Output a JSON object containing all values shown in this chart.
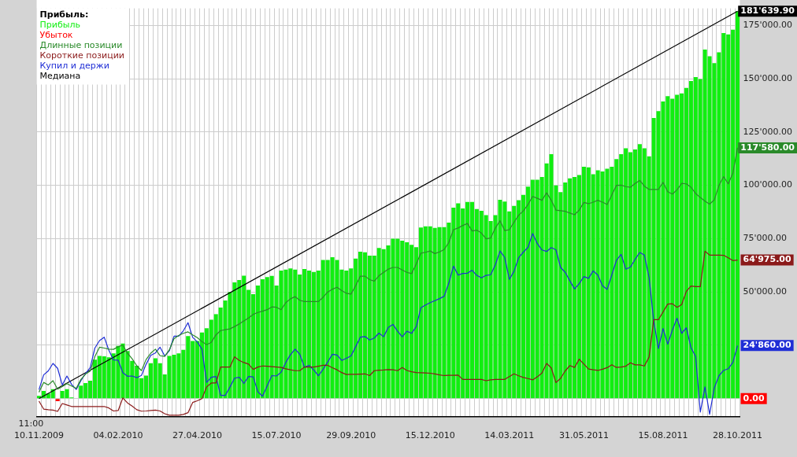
{
  "chart_data": {
    "type": "bar",
    "categories": [
      "10.11.2009",
      null,
      null,
      null,
      null,
      null,
      null,
      null,
      null,
      null,
      null,
      null,
      null,
      null,
      null,
      null,
      null,
      "04.02.2010",
      null,
      null,
      null,
      null,
      null,
      null,
      null,
      null,
      null,
      null,
      null,
      null,
      null,
      null,
      null,
      null,
      "27.04.2010",
      null,
      null,
      null,
      null,
      null,
      null,
      null,
      null,
      null,
      null,
      null,
      null,
      null,
      null,
      null,
      null,
      "15.07.2010",
      null,
      null,
      null,
      null,
      null,
      null,
      null,
      null,
      null,
      null,
      null,
      null,
      null,
      null,
      null,
      "29.09.2010",
      null,
      null,
      null,
      null,
      null,
      null,
      null,
      null,
      null,
      null,
      null,
      null,
      null,
      null,
      null,
      null,
      "15.12.2010",
      null,
      null,
      null,
      null,
      null,
      null,
      null,
      null,
      null,
      null,
      null,
      null,
      null,
      null,
      null,
      null,
      "14.03.2011",
      null,
      null,
      null,
      null,
      null,
      null,
      null,
      null,
      null,
      null,
      null,
      null,
      null,
      null,
      null,
      "31.05.2011",
      null,
      null,
      null,
      null,
      null,
      null,
      null,
      null,
      null,
      null,
      null,
      null,
      null,
      null,
      null,
      null,
      "15.08.2011",
      null,
      null,
      null,
      null,
      null,
      null,
      null,
      null,
      null,
      null,
      null,
      null,
      null,
      null,
      null,
      "28.10.2011"
    ],
    "series": [
      {
        "name": "Прибыль",
        "color": "#11ee11",
        "values": [
          1300,
          3600,
          2400,
          4400,
          null,
          3600,
          4400,
          600,
          null,
          6100,
          7300,
          8400,
          18300,
          20000,
          19800,
          19400,
          21200,
          24700,
          25800,
          22300,
          17700,
          15400,
          9600,
          10800,
          16600,
          18900,
          16600,
          11300,
          20000,
          20600,
          21200,
          22900,
          29300,
          27000,
          27000,
          31000,
          33000,
          37000,
          39600,
          42700,
          46000,
          50000,
          54500,
          55600,
          57600,
          51000,
          49000,
          53000,
          56000,
          57000,
          57500,
          53000,
          60000,
          60500,
          61000,
          60500,
          58200,
          60800,
          60000,
          59400,
          60000,
          65000,
          65000,
          66300,
          65000,
          60500,
          60000,
          61000,
          65700,
          68900,
          68600,
          67000,
          67000,
          70600,
          70100,
          71800,
          75000,
          75000,
          74000,
          73300,
          72100,
          71000,
          80200,
          80800,
          80800,
          80000,
          80400,
          80400,
          82500,
          89500,
          91600,
          89200,
          92200,
          92200,
          88900,
          88100,
          86000,
          83300,
          86000,
          93200,
          92400,
          87800,
          90400,
          93000,
          95500,
          99400,
          102600,
          102600,
          103900,
          110300,
          114600,
          100000,
          96800,
          101300,
          103300,
          103900,
          104800,
          108700,
          108400,
          105200,
          107100,
          106500,
          107800,
          108700,
          112300,
          114600,
          117400,
          115500,
          116800,
          119300,
          117400,
          113600,
          131600,
          134800,
          139300,
          141800,
          140600,
          142500,
          143100,
          145700,
          148900,
          150800,
          149800,
          163700,
          160500,
          157300,
          162400,
          171400,
          170800,
          173000,
          181639.9
        ]
      },
      {
        "name": "Убыток",
        "color": "#ff0000",
        "values": [
          null,
          null,
          null,
          null,
          -1200,
          null,
          null,
          null,
          null,
          null,
          null,
          null,
          null,
          null,
          null,
          null,
          null,
          null,
          null,
          null,
          null,
          null,
          null,
          null,
          null,
          null,
          null,
          null,
          null,
          null,
          null,
          null,
          null,
          null,
          null,
          null,
          null,
          null,
          null,
          null,
          null,
          null,
          null,
          null,
          null,
          null,
          null,
          null,
          null,
          null,
          null,
          null,
          null,
          null,
          null,
          null,
          null,
          null,
          null,
          null,
          null,
          null,
          null,
          null,
          null,
          null,
          null,
          null,
          null,
          null,
          null,
          null,
          null,
          null,
          null,
          null,
          null,
          null,
          null,
          null,
          null,
          null,
          null,
          null,
          null,
          null,
          null,
          null,
          null,
          null,
          null,
          null,
          null,
          null,
          null,
          null,
          null,
          null,
          null,
          null,
          null,
          null,
          null,
          null,
          null,
          null,
          null,
          null,
          null,
          null,
          null,
          null,
          null,
          null,
          null,
          null,
          null,
          null,
          null,
          null,
          null,
          null,
          null,
          null,
          null,
          null,
          null,
          null,
          null,
          null,
          null,
          null,
          null,
          null,
          null,
          null,
          null,
          null,
          null,
          null,
          null,
          null,
          null,
          null,
          null,
          null,
          null,
          null,
          null,
          null,
          0
        ]
      },
      {
        "name": "Длинные позиции",
        "type": "line",
        "color": "#2a8a2a",
        "values": [
          3000,
          7600,
          6400,
          8400,
          4400,
          5600,
          7000,
          5900,
          4800,
          9000,
          11500,
          12900,
          19700,
          24100,
          23700,
          23200,
          23100,
          24300,
          25100,
          21300,
          18700,
          15400,
          13100,
          18300,
          21300,
          23200,
          20100,
          19800,
          22900,
          28100,
          29600,
          30600,
          31300,
          29900,
          28600,
          26700,
          25300,
          26400,
          29900,
          31900,
          32300,
          32700,
          33800,
          35000,
          36400,
          37800,
          39500,
          40400,
          41000,
          41700,
          43000,
          42800,
          41700,
          45000,
          46800,
          47800,
          46100,
          45500,
          45500,
          45500,
          45500,
          47500,
          50000,
          51300,
          52200,
          50600,
          49400,
          49000,
          52900,
          57400,
          57400,
          55800,
          55100,
          57600,
          59200,
          60700,
          61500,
          61500,
          60300,
          59200,
          58600,
          63100,
          68200,
          68600,
          69200,
          68000,
          68800,
          69900,
          73200,
          79200,
          80000,
          81200,
          82100,
          78600,
          79000,
          77600,
          74900,
          75300,
          80000,
          83400,
          78800,
          79200,
          82700,
          86000,
          88000,
          91000,
          94800,
          93900,
          93000,
          96500,
          93000,
          88400,
          88100,
          87800,
          87000,
          86200,
          88400,
          92000,
          91400,
          92100,
          93000,
          92100,
          91000,
          95500,
          100000,
          100100,
          99400,
          99100,
          100900,
          102300,
          99600,
          98100,
          98100,
          98100,
          101400,
          97000,
          95900,
          97900,
          100900,
          100700,
          99100,
          96200,
          94300,
          92600,
          91200,
          93200,
          99900,
          104100,
          100700,
          105800,
          117580
        ]
      },
      {
        "name": "Короткие позиции",
        "type": "line",
        "color": "#8b1a1a",
        "values": [
          -1200,
          -4900,
          -5200,
          -5400,
          -6000,
          -2300,
          -3000,
          -3700,
          -3700,
          -3700,
          -3700,
          -3700,
          -3700,
          -3700,
          -3700,
          -4400,
          -5800,
          -5600,
          300,
          -2000,
          -3500,
          -5200,
          -5900,
          -5800,
          -5600,
          -5400,
          -5800,
          -7100,
          -7800,
          -7800,
          -7800,
          -7400,
          -6600,
          -1800,
          -1000,
          0,
          5500,
          7300,
          7300,
          14800,
          14800,
          14800,
          19600,
          17900,
          16900,
          16200,
          13700,
          14800,
          15300,
          15200,
          15000,
          14800,
          14600,
          14000,
          13500,
          13100,
          13100,
          14800,
          14800,
          14800,
          15200,
          15600,
          15600,
          14500,
          13500,
          12200,
          11300,
          11400,
          11400,
          11500,
          11600,
          10800,
          13100,
          13300,
          13400,
          13600,
          13500,
          13100,
          14600,
          13200,
          12600,
          12200,
          12100,
          12000,
          11900,
          11600,
          11100,
          10800,
          10900,
          10900,
          11000,
          9000,
          9000,
          9000,
          9000,
          9000,
          8400,
          8800,
          9000,
          9000,
          9000,
          10300,
          11600,
          10700,
          9900,
          9400,
          8800,
          10200,
          12000,
          16500,
          14400,
          7500,
          9500,
          13000,
          15500,
          14600,
          18500,
          16200,
          13900,
          13500,
          13200,
          13800,
          14500,
          15900,
          14600,
          14800,
          15200,
          16800,
          15800,
          15800,
          15300,
          19500,
          37000,
          37000,
          40600,
          44300,
          44500,
          42800,
          44100,
          50300,
          52800,
          52500,
          52500,
          69100,
          67300,
          67300,
          67300,
          67200,
          66000,
          64700,
          64975
        ]
      },
      {
        "name": "Купил и держи",
        "type": "line",
        "color": "#1f2ed6",
        "values": [
          4200,
          11100,
          13000,
          16500,
          14200,
          6400,
          10600,
          6700,
          4300,
          8400,
          11800,
          14500,
          23700,
          27200,
          28800,
          22700,
          18100,
          18000,
          12200,
          10500,
          10600,
          9800,
          10900,
          16100,
          20300,
          21400,
          24100,
          20000,
          22500,
          29300,
          29300,
          31800,
          35600,
          28700,
          26600,
          23100,
          7600,
          10000,
          10400,
          1500,
          1500,
          5400,
          9600,
          10000,
          7100,
          10400,
          10200,
          3200,
          1100,
          6000,
          10800,
          10600,
          12400,
          17000,
          20600,
          23200,
          20800,
          14700,
          15600,
          13400,
          10700,
          13700,
          17200,
          20800,
          20400,
          17900,
          18900,
          20000,
          24300,
          28800,
          29100,
          27500,
          28400,
          30700,
          29000,
          33400,
          34800,
          31600,
          29000,
          31600,
          30600,
          33700,
          42600,
          43900,
          45000,
          45900,
          46900,
          48000,
          54200,
          62100,
          57900,
          58700,
          58800,
          60200,
          57800,
          56600,
          57800,
          58100,
          62800,
          69200,
          66200,
          55900,
          59700,
          66100,
          68700,
          70900,
          77400,
          72700,
          69700,
          69000,
          70800,
          69800,
          61500,
          59200,
          55200,
          51400,
          53900,
          57200,
          56400,
          59900,
          57900,
          52900,
          51200,
          58000,
          64900,
          67600,
          60700,
          61700,
          65300,
          68500,
          67300,
          56800,
          36400,
          23500,
          32900,
          25500,
          32100,
          37700,
          30600,
          33200,
          23900,
          19700,
          -6300,
          5500,
          -7300,
          5000,
          10700,
          13200,
          14000,
          17000,
          24860
        ]
      },
      {
        "name": "Медиана",
        "type": "line",
        "color": "#000000",
        "x": [
          "10.11.2009",
          "28.10.2011"
        ],
        "values": [
          0,
          181639.9
        ]
      }
    ],
    "legend_title": "Прибыль:",
    "legend": "top left",
    "grid": true,
    "ylim": [
      -8500,
      183000
    ],
    "yticks": [
      {
        "value": 0,
        "label": null
      },
      {
        "value": 25000,
        "label": null
      },
      {
        "value": 50000,
        "label": "50'000.00"
      },
      {
        "value": 75000,
        "label": "75'000.00"
      },
      {
        "value": 100000,
        "label": "100'000.00"
      },
      {
        "value": 125000,
        "label": "125'000.00"
      },
      {
        "value": 150000,
        "label": "150'000.00"
      },
      {
        "value": 175000,
        "label": "175'000.00"
      }
    ],
    "annotations": [
      "11:00",
      {
        "text": "181'639.90",
        "x": "28.10.2011",
        "y": 181639.9
      },
      {
        "text": "117'580.00",
        "x": "28.10.2011",
        "y": 117580
      },
      {
        "text": "64'975.00",
        "x": "28.10.2011",
        "y": 64975
      },
      {
        "text": "24'860.00",
        "x": "28.10.2011",
        "y": 24860
      },
      {
        "text": "0.00",
        "x": "28.10.2011",
        "y": 0
      }
    ]
  }
}
